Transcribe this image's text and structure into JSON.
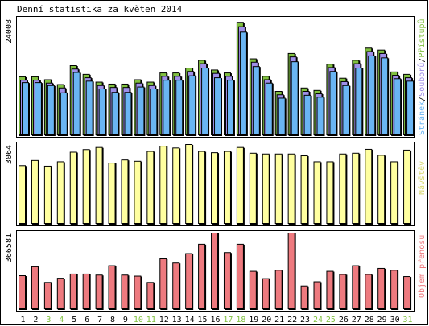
{
  "title": "Denní statistika za květen 2014",
  "colors": {
    "pristupu": "#80C040",
    "souboru": "#9F8FE8",
    "stranek": "#6AB5F3",
    "navstev": "#FFFFA0",
    "objem": "#EE7A7F",
    "weekend": "#80C040",
    "weekday": "#000000"
  },
  "chart_data": [
    {
      "type": "bar",
      "name": "hits",
      "ymax_label": "24008",
      "ylim": [
        0,
        24008
      ],
      "side_label": {
        "stranek": "Stránek",
        "souboru": "Souborů",
        "pristupu": "Přístupů"
      },
      "series": [
        {
          "name": "Přístupů",
          "values": [
            12104,
            12104,
            11504,
            10504,
            14404,
            12604,
            11004,
            10604,
            10604,
            11504,
            11004,
            12904,
            12904,
            13904,
            15504,
            13504,
            12904,
            23308,
            15804,
            12204,
            9104,
            16904,
            9804,
            9304,
            14704,
            11804,
            15504,
            18004,
            17604,
            13104,
            12604
          ]
        },
        {
          "name": "Souborů",
          "values": [
            11404,
            11404,
            10804,
            9804,
            13704,
            11904,
            10304,
            9904,
            9904,
            10804,
            10304,
            12204,
            12204,
            13204,
            14804,
            12804,
            12204,
            22408,
            15104,
            11504,
            8404,
            16204,
            9104,
            8604,
            14004,
            11104,
            14804,
            17304,
            16904,
            12404,
            11904
          ]
        },
        {
          "name": "Stránek",
          "values": [
            10904,
            10904,
            10304,
            8804,
            13004,
            11204,
            9604,
            8904,
            8904,
            10004,
            9604,
            11404,
            11404,
            12304,
            13904,
            11904,
            11404,
            21308,
            14204,
            10804,
            7704,
            15204,
            8304,
            7904,
            13204,
            10304,
            13904,
            16404,
            16004,
            11704,
            11204
          ]
        }
      ]
    },
    {
      "type": "bar",
      "name": "visits",
      "ymax_label": "3064",
      "ylim": [
        0,
        3064
      ],
      "side_label": "Návštěv",
      "values": [
        2250,
        2450,
        2230,
        2400,
        2770,
        2870,
        2950,
        2350,
        2470,
        2420,
        2800,
        3000,
        2930,
        3064,
        2800,
        2750,
        2800,
        2950,
        2730,
        2700,
        2700,
        2700,
        2630,
        2400,
        2400,
        2700,
        2730,
        2880,
        2650,
        2400,
        2850
      ]
    },
    {
      "type": "bar",
      "name": "volume",
      "ymax_label": "366581",
      "ylim": [
        0,
        366581
      ],
      "side_label": "Objem přenosu",
      "values": [
        162000,
        205000,
        130000,
        150000,
        170000,
        170000,
        165000,
        210000,
        165000,
        160000,
        130000,
        243000,
        223000,
        268000,
        313000,
        366581,
        273000,
        313000,
        183000,
        148000,
        188000,
        366581,
        113000,
        133000,
        183000,
        168000,
        210000,
        168000,
        197000,
        188000,
        158000
      ]
    }
  ],
  "x_days": [
    "1",
    "2",
    "3",
    "4",
    "5",
    "6",
    "7",
    "8",
    "9",
    "10",
    "11",
    "12",
    "13",
    "14",
    "15",
    "16",
    "17",
    "18",
    "19",
    "20",
    "21",
    "22",
    "23",
    "24",
    "25",
    "26",
    "27",
    "28",
    "29",
    "30",
    "31"
  ],
  "weekend_days": [
    3,
    4,
    10,
    11,
    17,
    18,
    24,
    25,
    31
  ]
}
